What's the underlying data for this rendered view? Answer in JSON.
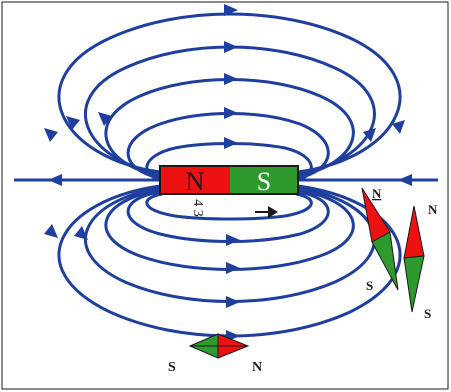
{
  "magnet": {
    "north_label": "N",
    "south_label": "S",
    "north_color": "#ee1111",
    "south_color": "#2e9a2e",
    "outline_color": "#1a1a1a"
  },
  "field_lines": {
    "color": "#1f3f9e"
  },
  "axis_label": "4 3",
  "compasses": {
    "bottom": {
      "left_label": "S",
      "right_label": "N"
    },
    "right_a": {
      "top_label": "N",
      "bottom_label": "S"
    },
    "right_b": {
      "top_label": "N",
      "bottom_label": "S"
    },
    "north_color": "#ee1111",
    "south_color": "#2e9a2e"
  }
}
